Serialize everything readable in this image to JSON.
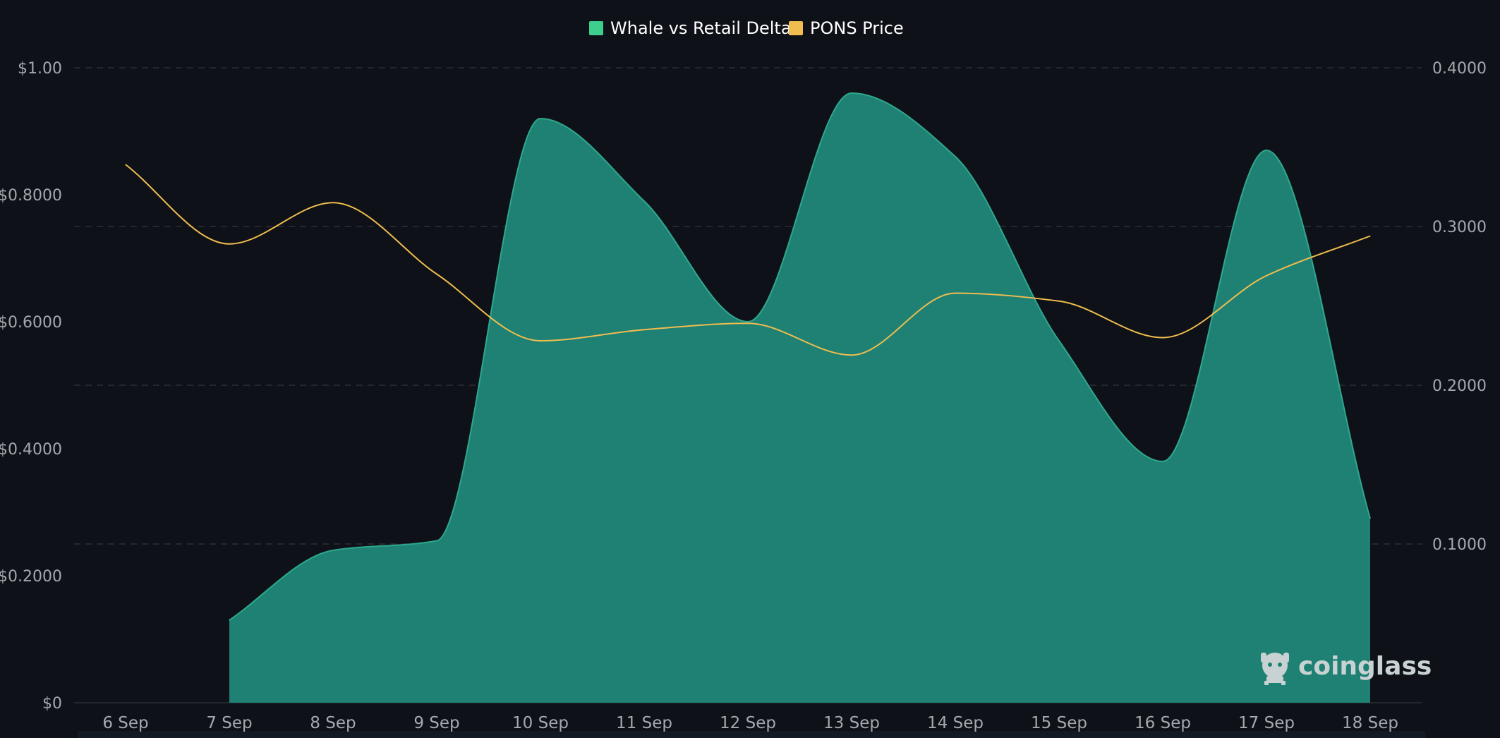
{
  "chart_data": {
    "type": "area",
    "categories": [
      "6 Sep",
      "7 Sep",
      "8 Sep",
      "9 Sep",
      "10 Sep",
      "11 Sep",
      "12 Sep",
      "13 Sep",
      "14 Sep",
      "15 Sep",
      "16 Sep",
      "17 Sep",
      "18 Sep"
    ],
    "series": [
      {
        "name": "Whale vs Retail Delta",
        "type": "area",
        "axis": "left",
        "color": "#3ecf8e",
        "values": [
          null,
          0.13,
          0.24,
          0.255,
          0.92,
          0.79,
          0.6,
          0.96,
          0.86,
          0.57,
          0.38,
          0.87,
          0.29
        ]
      },
      {
        "name": "PONS Price",
        "type": "line",
        "axis": "right",
        "color": "#f0bd4f",
        "values": [
          0.339,
          0.289,
          0.315,
          0.27,
          0.228,
          0.235,
          0.239,
          0.219,
          0.258,
          0.253,
          0.23,
          0.269,
          0.294
        ]
      }
    ],
    "y_left": {
      "ticks": [
        "$0",
        "$0.2000",
        "$0.4000",
        "$0.6000",
        "$0.8000",
        "$1.00"
      ],
      "range": [
        0,
        1.0
      ]
    },
    "y_right": {
      "ticks": [
        "0.1000",
        "0.2000",
        "0.3000",
        "0.4000"
      ],
      "range": [
        0,
        0.4
      ]
    },
    "legend": "top-center",
    "grid": true,
    "watermark": "coinglass"
  }
}
